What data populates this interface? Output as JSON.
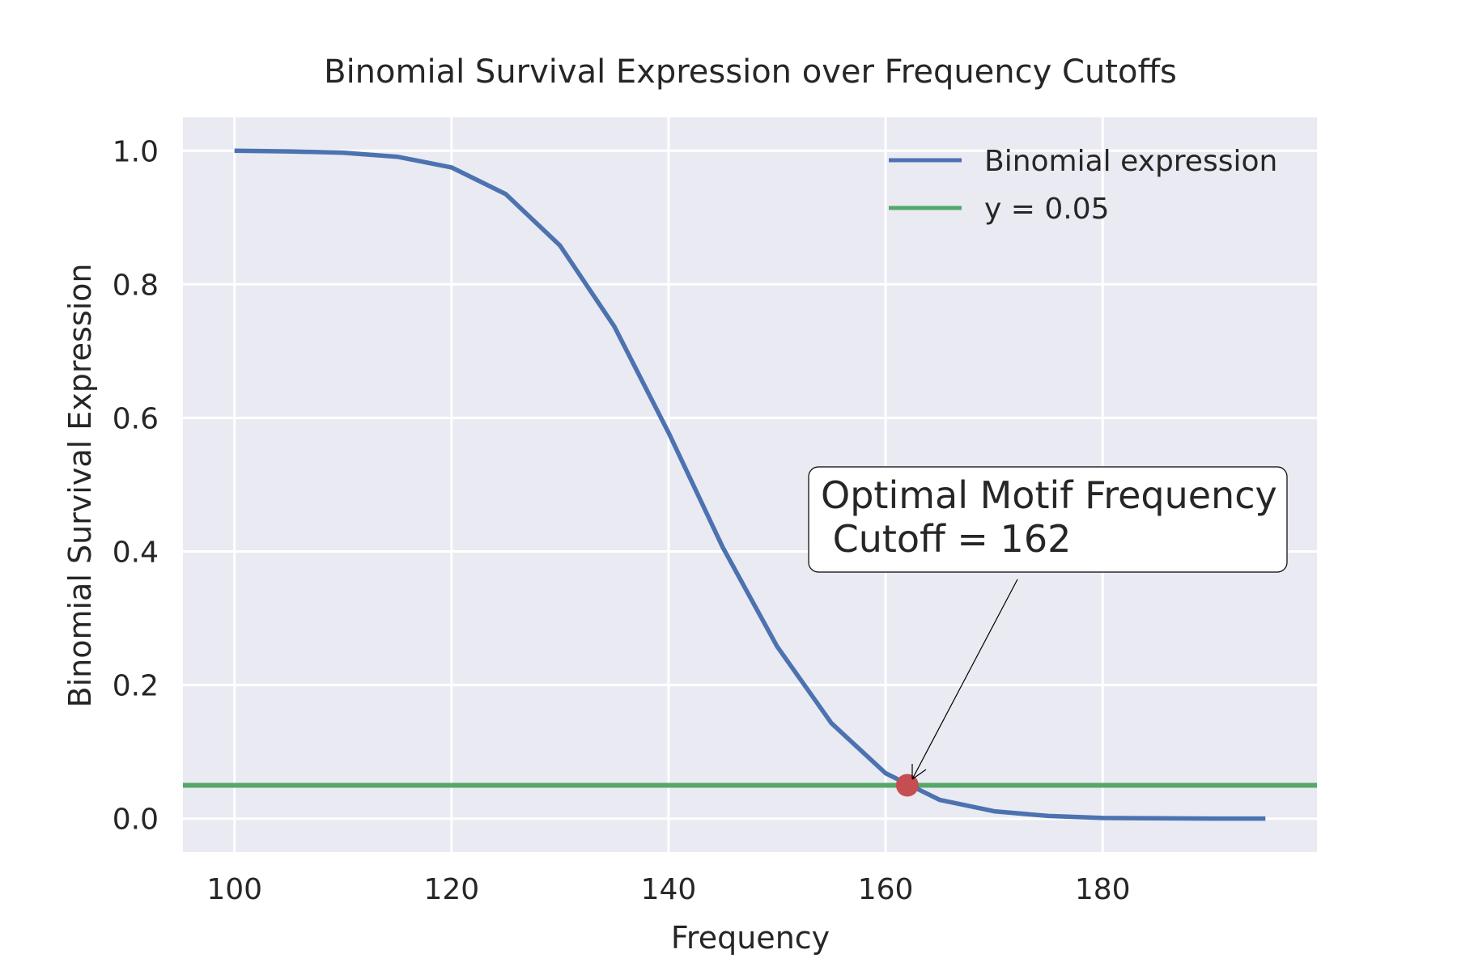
{
  "chart_data": {
    "type": "line",
    "title": "Binomial Survival Expression over Frequency Cutoffs",
    "xlabel": "Frequency",
    "ylabel": "Binomial Survival Expression",
    "xlim": [
      95.25,
      199.75
    ],
    "ylim": [
      -0.05,
      1.05
    ],
    "xticks": [
      100,
      120,
      140,
      160,
      180
    ],
    "yticks": [
      0.0,
      0.2,
      0.4,
      0.6,
      0.8,
      1.0
    ],
    "ytick_labels": [
      "0.0",
      "0.2",
      "0.4",
      "0.6",
      "0.8",
      "1.0"
    ],
    "grid": true,
    "legend_position": "top-right",
    "series": [
      {
        "name": "Binomial expression",
        "color": "#4c72b0",
        "x": [
          100,
          105,
          110,
          115,
          120,
          125,
          130,
          135,
          140,
          145,
          150,
          155,
          160,
          165,
          170,
          175,
          180,
          185,
          190,
          195
        ],
        "y": [
          1.0,
          0.999,
          0.997,
          0.991,
          0.975,
          0.935,
          0.858,
          0.737,
          0.578,
          0.406,
          0.258,
          0.143,
          0.068,
          0.028,
          0.011,
          0.004,
          0.001,
          0.0005,
          0.0002,
          0.0001
        ]
      },
      {
        "name": "y = 0.05",
        "color": "#55a868",
        "hline": 0.05
      }
    ],
    "marker": {
      "x": 162,
      "y": 0.05,
      "color": "#c44e52"
    },
    "annotation": {
      "line1": "Optimal Motif Frequency",
      "line2": " Cutoff = 162"
    }
  }
}
